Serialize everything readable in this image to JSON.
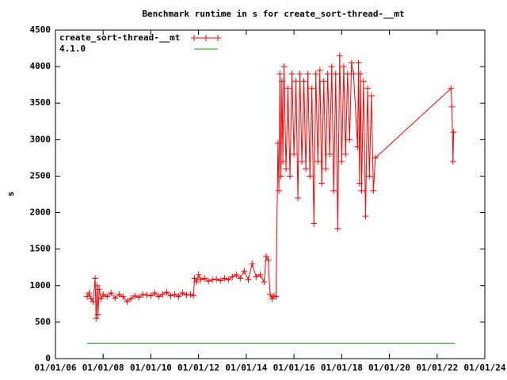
{
  "chart_data": {
    "type": "line",
    "title": "Benchmark runtime in s for create_sort-thread-__mt",
    "y_label": "s",
    "xlim": [
      "01/01/06",
      "01/01/24"
    ],
    "xticks": [
      "01/01/06",
      "01/01/08",
      "01/01/10",
      "01/01/12",
      "01/01/14",
      "01/01/16",
      "01/01/18",
      "01/01/20",
      "01/01/22",
      "01/01/24"
    ],
    "ylim": [
      0,
      4500
    ],
    "yticks": [
      0,
      500,
      1000,
      1500,
      2000,
      2500,
      3000,
      3500,
      4000,
      4500
    ],
    "legend": "top-left",
    "series": [
      {
        "name": "create_sort-thread-__mt",
        "color": "#ff0000",
        "markers": true,
        "x": [
          "05/01/07",
          "06/01/07",
          "07/01/07",
          "08/01/07",
          "09/01/07",
          "09/15/07",
          "10/01/07",
          "10/15/07",
          "11/01/07",
          "12/01/07",
          "01/01/08",
          "03/01/08",
          "05/01/08",
          "07/01/08",
          "09/01/08",
          "11/01/08",
          "01/01/09",
          "03/01/09",
          "05/01/09",
          "07/01/09",
          "09/01/09",
          "11/01/09",
          "01/01/10",
          "03/01/10",
          "05/01/10",
          "07/01/10",
          "09/01/10",
          "11/01/10",
          "01/01/11",
          "03/01/11",
          "05/01/11",
          "07/01/11",
          "09/01/11",
          "10/15/11",
          "11/01/11",
          "12/01/11",
          "01/01/12",
          "02/01/12",
          "04/01/12",
          "06/01/12",
          "08/01/12",
          "10/01/12",
          "12/01/12",
          "02/01/13",
          "04/01/13",
          "06/01/13",
          "08/01/13",
          "10/01/13",
          "12/01/13",
          "02/01/14",
          "04/01/14",
          "06/01/14",
          "08/01/14",
          "10/01/14",
          "11/01/14",
          "12/01/14",
          "01/01/15",
          "02/01/15",
          "03/01/15",
          "04/01/15",
          "05/01/15",
          "05/15/15",
          "06/01/15",
          "06/15/15",
          "07/01/15",
          "07/15/15",
          "08/01/15",
          "09/01/15",
          "10/01/15",
          "11/01/15",
          "12/01/15",
          "01/01/16",
          "02/01/16",
          "03/01/16",
          "04/01/16",
          "05/01/16",
          "06/01/16",
          "07/01/16",
          "08/01/16",
          "09/01/16",
          "10/01/16",
          "11/01/16",
          "12/01/16",
          "01/01/17",
          "02/01/17",
          "03/01/17",
          "04/01/17",
          "05/01/17",
          "06/01/17",
          "07/01/17",
          "08/01/17",
          "09/01/17",
          "10/01/17",
          "11/01/17",
          "12/01/17",
          "01/01/18",
          "02/01/18",
          "03/01/18",
          "04/01/18",
          "05/01/18",
          "06/01/18",
          "07/01/18",
          "09/01/18",
          "09/15/18",
          "10/01/18",
          "10/15/18",
          "11/01/18",
          "12/01/18",
          "01/01/19",
          "02/01/19",
          "03/01/19",
          "04/01/19",
          "05/01/19",
          "06/01/19",
          "08/01/22",
          "08/15/22",
          "09/01/22",
          "09/10/22"
        ],
        "values": [
          850,
          900,
          820,
          780,
          1100,
          550,
          1000,
          600,
          950,
          820,
          880,
          850,
          900,
          830,
          880,
          850,
          780,
          820,
          860,
          840,
          880,
          870,
          860,
          900,
          850,
          880,
          910,
          860,
          880,
          850,
          900,
          870,
          880,
          860,
          1100,
          1050,
          1150,
          1080,
          1100,
          1060,
          1080,
          1090,
          1070,
          1100,
          1080,
          1120,
          1150,
          1100,
          1200,
          1080,
          1300,
          1120,
          1150,
          1050,
          1400,
          1350,
          880,
          820,
          860,
          850,
          2950,
          2300,
          3900,
          2500,
          3800,
          2700,
          4000,
          2600,
          3700,
          2500,
          3900,
          2800,
          3800,
          2200,
          3900,
          2700,
          3800,
          2600,
          3900,
          2500,
          3700,
          1850,
          3900,
          2700,
          3950,
          2400,
          3800,
          2600,
          3900,
          2800,
          4000,
          2300,
          3900,
          1780,
          4150,
          2700,
          4000,
          2800,
          3900,
          3000,
          4050,
          3900,
          2900,
          4050,
          2400,
          3900,
          2300,
          3800,
          1950,
          3700,
          2500,
          3600,
          2300,
          2750,
          3700,
          3450,
          2700,
          3100
        ]
      },
      {
        "name": "4.1.0",
        "color": "#00a000",
        "markers": false,
        "x": [
          "05/01/07",
          "10/01/22"
        ],
        "values": [
          210,
          210
        ]
      }
    ]
  }
}
